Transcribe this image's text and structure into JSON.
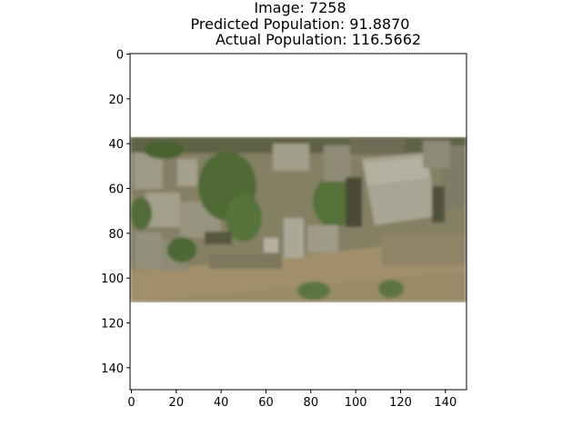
{
  "figure": {
    "title_lines": [
      "Image: 7258",
      "Predicted Population: 91.8870",
      "Actual Population: 116.5662"
    ]
  },
  "axes": {
    "x_ticks": [
      "0",
      "20",
      "40",
      "60",
      "80",
      "100",
      "120",
      "140"
    ],
    "y_ticks": [
      "0",
      "20",
      "40",
      "60",
      "80",
      "100",
      "120",
      "140"
    ],
    "x_range": [
      0,
      150
    ],
    "y_range": [
      0,
      150
    ],
    "y_inverted": true,
    "grid": false
  },
  "image": {
    "description_icon": "aerial-satellite-image",
    "band_y_range": [
      37,
      111
    ],
    "colors": {
      "ground": "#8a8468",
      "vegetation": "#4f6a36",
      "roof": "#a5a391",
      "road": "#9c8d6a",
      "shadow": "#3f4431"
    }
  }
}
